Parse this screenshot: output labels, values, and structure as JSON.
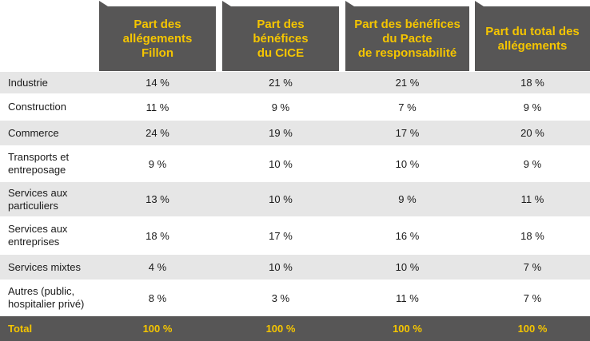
{
  "headers": [
    "Part des\nallégements\nFillon",
    "Part des\nbénéfices\ndu CICE",
    "Part des bénéfices\ndu Pacte\nde responsabilité",
    "Part du total des\nallégements"
  ],
  "rows": [
    {
      "label": "Industrie",
      "values": [
        "14 %",
        "21 %",
        "21 %",
        "18 %"
      ]
    },
    {
      "label": "Construction",
      "values": [
        "11 %",
        "9 %",
        "7 %",
        "9 %"
      ]
    },
    {
      "label": "Commerce",
      "values": [
        "24 %",
        "19 %",
        "17 %",
        "20 %"
      ]
    },
    {
      "label": "Transports et\nentreposage",
      "values": [
        "9 %",
        "10 %",
        "10 %",
        "9 %"
      ]
    },
    {
      "label": "Services aux\nparticuliers",
      "values": [
        "13 %",
        "10 %",
        "9 %",
        "11 %"
      ]
    },
    {
      "label": "Services aux\nentreprises",
      "values": [
        "18 %",
        "17 %",
        "16 %",
        "18 %"
      ]
    },
    {
      "label": "Services mixtes",
      "values": [
        "4 %",
        "10 %",
        "10 %",
        "7 %"
      ]
    },
    {
      "label": "Autres (public,\nhospitalier privé)",
      "values": [
        "8 %",
        "3 %",
        "11 %",
        "7 %"
      ]
    }
  ],
  "total": {
    "label": "Total",
    "values": [
      "100 %",
      "100 %",
      "100 %",
      "100 %"
    ]
  }
}
